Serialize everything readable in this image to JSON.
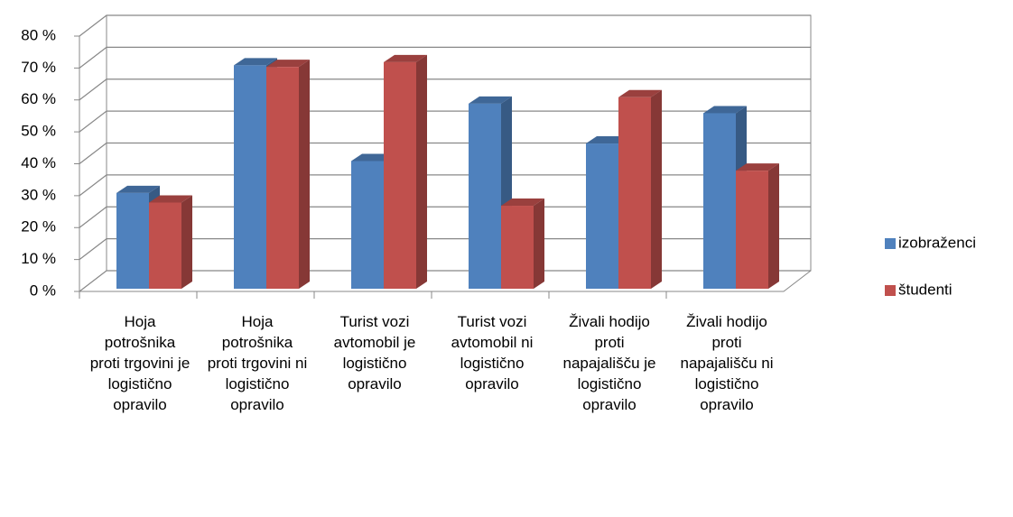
{
  "chart_data": {
    "type": "bar3d",
    "categories": [
      "Hoja potrošnika proti trgovini je logistično opravilo",
      "Hoja potrošnika proti trgovini ni logistično opravilo",
      "Turist vozi avtomobil je logistično opravilo",
      "Turist vozi avtomobil ni logistično opravilo",
      "Živali hodijo proti napajališču je logistično opravilo",
      "Živali hodijo proti napajališču ni logistično opravilo"
    ],
    "series": [
      {
        "name": "izobraženci",
        "color": "#4f81bd",
        "values": [
          30,
          70,
          40,
          58,
          45.5,
          55
        ]
      },
      {
        "name": "študenti",
        "color": "#c0504d",
        "values": [
          27,
          69.5,
          71,
          26,
          60,
          37
        ]
      }
    ],
    "ylim": [
      0,
      80
    ],
    "yticks": [
      {
        "value": 0,
        "label": "0 %"
      },
      {
        "value": 10,
        "label": "10 %"
      },
      {
        "value": 20,
        "label": "20 %"
      },
      {
        "value": 30,
        "label": "30 %"
      },
      {
        "value": 40,
        "label": "40 %"
      },
      {
        "value": 50,
        "label": "50 %"
      },
      {
        "value": 60,
        "label": "60 %"
      },
      {
        "value": 70,
        "label": "70 %"
      },
      {
        "value": 80,
        "label": "80 %"
      }
    ],
    "grid": true,
    "legend": "right"
  }
}
